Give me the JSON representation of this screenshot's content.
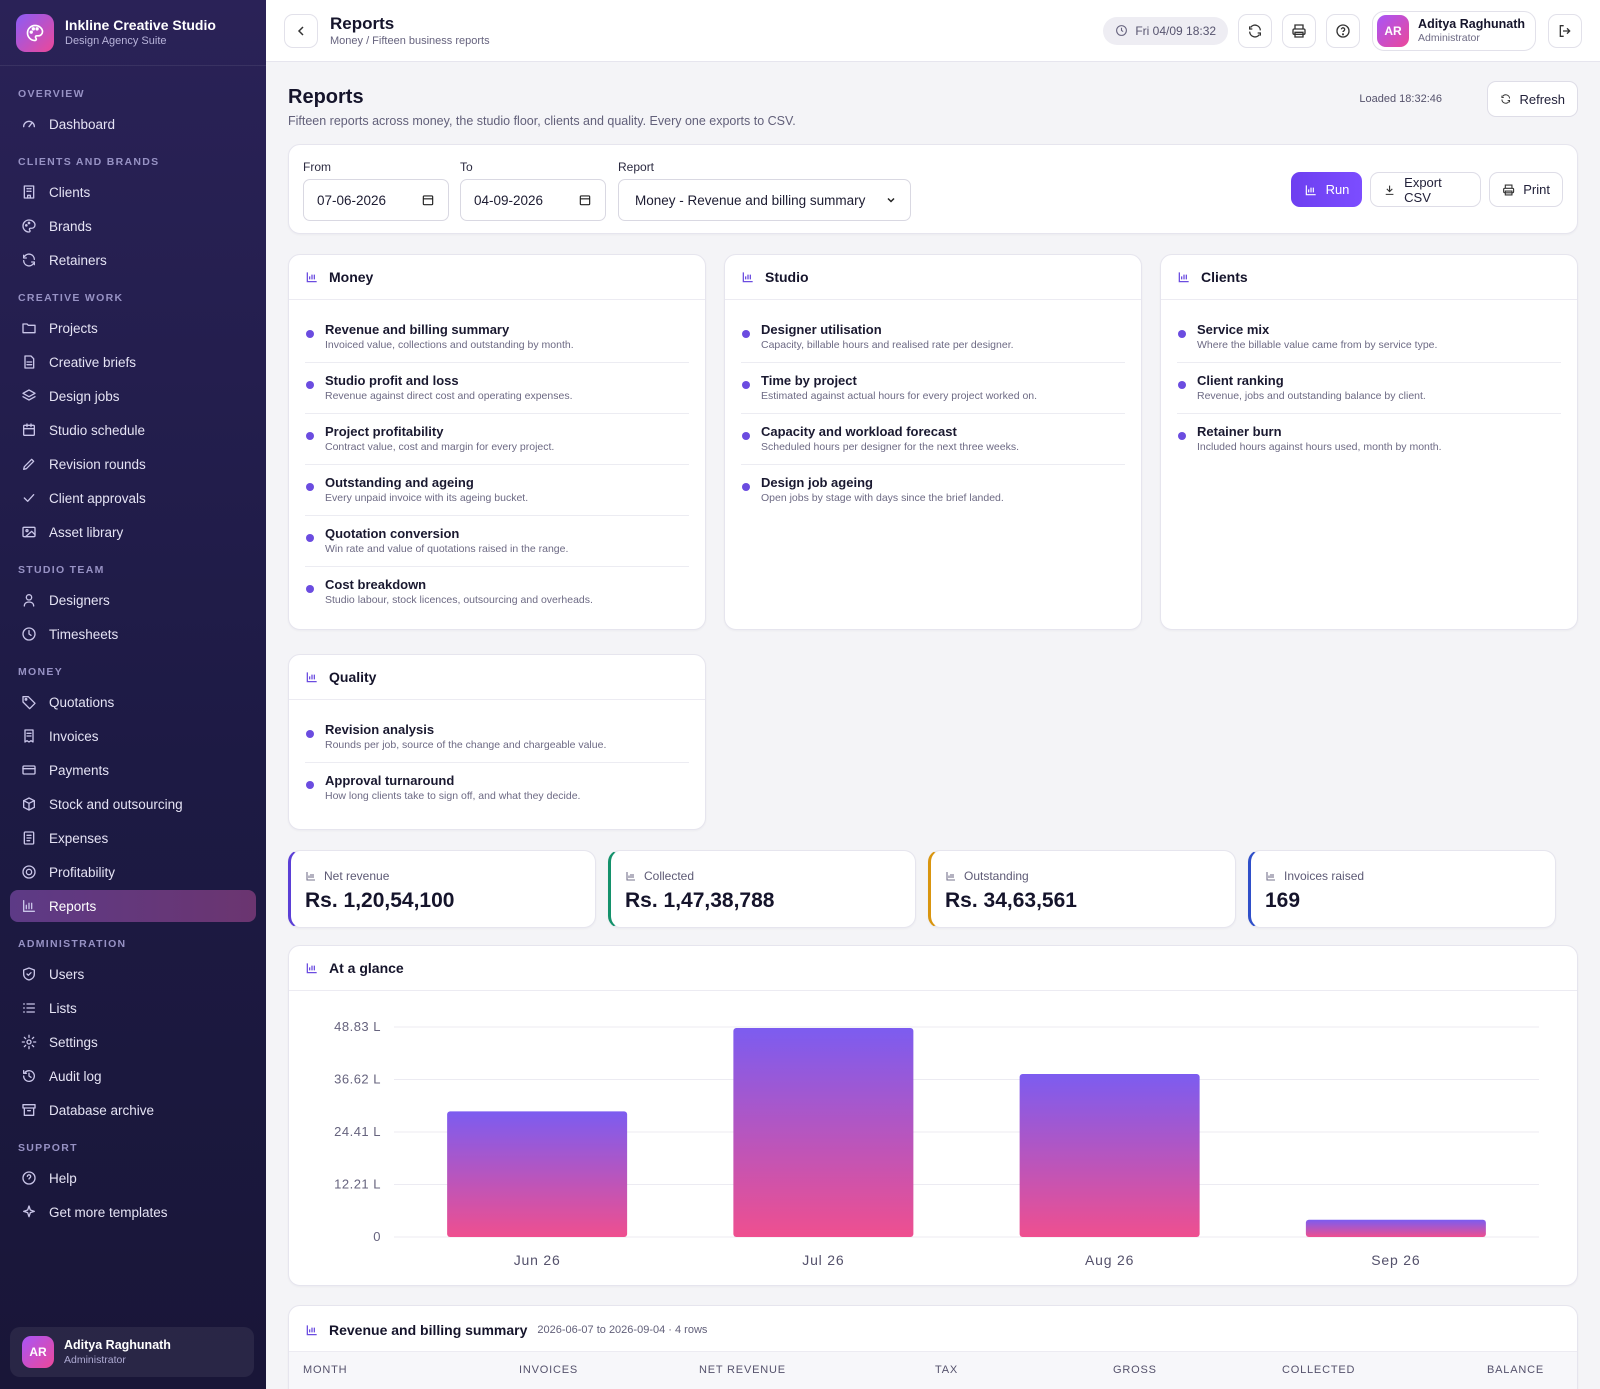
{
  "brand": {
    "title": "Inkline Creative Studio",
    "subtitle": "Design Agency Suite"
  },
  "nav": [
    {
      "section": "OVERVIEW",
      "items": [
        {
          "label": "Dashboard",
          "icon": "gauge-icon"
        }
      ]
    },
    {
      "section": "CLIENTS AND BRANDS",
      "items": [
        {
          "label": "Clients",
          "icon": "building-icon"
        },
        {
          "label": "Brands",
          "icon": "palette-icon"
        },
        {
          "label": "Retainers",
          "icon": "refresh-icon"
        }
      ]
    },
    {
      "section": "CREATIVE WORK",
      "items": [
        {
          "label": "Projects",
          "icon": "folder-icon"
        },
        {
          "label": "Creative briefs",
          "icon": "file-icon"
        },
        {
          "label": "Design jobs",
          "icon": "layers-icon"
        },
        {
          "label": "Studio schedule",
          "icon": "calendar-icon"
        },
        {
          "label": "Revision rounds",
          "icon": "pen-icon"
        },
        {
          "label": "Client approvals",
          "icon": "check-icon"
        },
        {
          "label": "Asset library",
          "icon": "image-icon"
        }
      ]
    },
    {
      "section": "STUDIO TEAM",
      "items": [
        {
          "label": "Designers",
          "icon": "user-icon"
        },
        {
          "label": "Timesheets",
          "icon": "clock-icon"
        }
      ]
    },
    {
      "section": "MONEY",
      "items": [
        {
          "label": "Quotations",
          "icon": "tag-icon"
        },
        {
          "label": "Invoices",
          "icon": "receipt-icon"
        },
        {
          "label": "Payments",
          "icon": "card-icon"
        },
        {
          "label": "Stock and outsourcing",
          "icon": "box-icon"
        },
        {
          "label": "Expenses",
          "icon": "list-doc-icon"
        },
        {
          "label": "Profitability",
          "icon": "target-icon"
        },
        {
          "label": "Reports",
          "icon": "bar-chart-icon",
          "active": true
        }
      ]
    },
    {
      "section": "ADMINISTRATION",
      "items": [
        {
          "label": "Users",
          "icon": "shield-icon"
        },
        {
          "label": "Lists",
          "icon": "list-icon"
        },
        {
          "label": "Settings",
          "icon": "gear-icon"
        },
        {
          "label": "Audit log",
          "icon": "history-icon"
        },
        {
          "label": "Database archive",
          "icon": "archive-icon"
        }
      ]
    },
    {
      "section": "SUPPORT",
      "items": [
        {
          "label": "Help",
          "icon": "help-icon"
        },
        {
          "label": "Get more templates",
          "icon": "sparkle-icon"
        }
      ]
    }
  ],
  "user": {
    "initials": "AR",
    "name": "Aditya Raghunath",
    "role": "Administrator"
  },
  "topbar": {
    "title": "Reports",
    "breadcrumb": "Money / Fifteen business reports",
    "clock": "Fri 04/09 18:32"
  },
  "page": {
    "title": "Reports",
    "subtitle": "Fifteen reports across money, the studio floor, clients and quality. Every one exports to CSV.",
    "loaded": "Loaded 18:32:46",
    "refresh_label": "Refresh"
  },
  "filters": {
    "from_label": "From",
    "from_value": "07-06-2026",
    "to_label": "To",
    "to_value": "04-09-2026",
    "report_label": "Report",
    "report_value": "Money - Revenue and billing summary",
    "run_label": "Run",
    "export_label": "Export CSV",
    "print_label": "Print"
  },
  "categories": {
    "money": {
      "title": "Money",
      "items": [
        {
          "name": "Revenue and billing summary",
          "desc": "Invoiced value, collections and outstanding by month."
        },
        {
          "name": "Studio profit and loss",
          "desc": "Revenue against direct cost and operating expenses."
        },
        {
          "name": "Project profitability",
          "desc": "Contract value, cost and margin for every project."
        },
        {
          "name": "Outstanding and ageing",
          "desc": "Every unpaid invoice with its ageing bucket."
        },
        {
          "name": "Quotation conversion",
          "desc": "Win rate and value of quotations raised in the range."
        },
        {
          "name": "Cost breakdown",
          "desc": "Studio labour, stock licences, outsourcing and overheads."
        }
      ]
    },
    "studio": {
      "title": "Studio",
      "items": [
        {
          "name": "Designer utilisation",
          "desc": "Capacity, billable hours and realised rate per designer."
        },
        {
          "name": "Time by project",
          "desc": "Estimated against actual hours for every project worked on."
        },
        {
          "name": "Capacity and workload forecast",
          "desc": "Scheduled hours per designer for the next three weeks."
        },
        {
          "name": "Design job ageing",
          "desc": "Open jobs by stage with days since the brief landed."
        }
      ]
    },
    "clients": {
      "title": "Clients",
      "items": [
        {
          "name": "Service mix",
          "desc": "Where the billable value came from by service type."
        },
        {
          "name": "Client ranking",
          "desc": "Revenue, jobs and outstanding balance by client."
        },
        {
          "name": "Retainer burn",
          "desc": "Included hours against hours used, month by month."
        }
      ]
    },
    "quality": {
      "title": "Quality",
      "items": [
        {
          "name": "Revision analysis",
          "desc": "Rounds per job, source of the change and chargeable value."
        },
        {
          "name": "Approval turnaround",
          "desc": "How long clients take to sign off, and what they decide."
        }
      ]
    }
  },
  "stats": [
    {
      "label": "Net revenue",
      "value": "Rs. 1,20,54,100",
      "color": "#5b3fd6"
    },
    {
      "label": "Collected",
      "value": "Rs. 1,47,38,788",
      "color": "#14916b"
    },
    {
      "label": "Outstanding",
      "value": "Rs. 34,63,561",
      "color": "#d9950f"
    },
    {
      "label": "Invoices raised",
      "value": "169",
      "color": "#2f4fc9"
    }
  ],
  "glance": {
    "title": "At a glance"
  },
  "chart_data": {
    "type": "bar",
    "categories": [
      "Jun 26",
      "Jul 26",
      "Aug 26",
      "Sep 26"
    ],
    "values": [
      29.2,
      48.6,
      37.9,
      4.0
    ],
    "unit": "L",
    "y_ticks": [
      "0",
      "12.21 L",
      "24.41 L",
      "36.62 L",
      "48.83 L"
    ],
    "ylim": [
      0,
      48.83
    ],
    "grid": true,
    "colors": {
      "top": "#7c5cf0",
      "bottom": "#ef4f8f"
    }
  },
  "table": {
    "title": "Revenue and billing summary",
    "meta": "2026-06-07 to 2026-09-04 · 4 rows",
    "columns": [
      "MONTH",
      "INVOICES",
      "NET REVENUE",
      "TAX",
      "GROSS",
      "COLLECTED",
      "BALANCE"
    ]
  }
}
